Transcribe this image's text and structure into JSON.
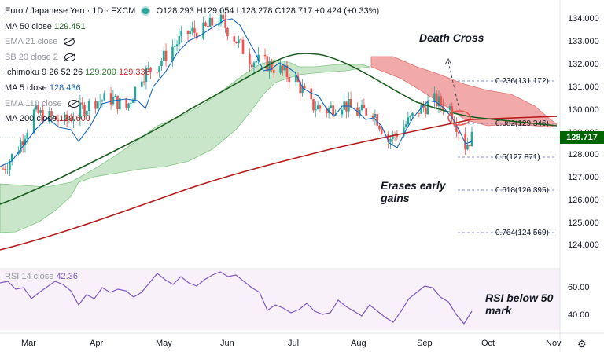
{
  "header": {
    "symbol": "Euro / Japanese Yen · 1D · FXCM",
    "ohlc": "O128.293 H129.054 L128.278 C128.717 +0.424 (+0.33%)"
  },
  "indicators": {
    "ma50": {
      "label": "MA 50 close",
      "value": "129.451"
    },
    "ema21": {
      "label": "EMA 21 close"
    },
    "bb": {
      "label": "BB 20 close 2"
    },
    "ichimoku": {
      "label": "Ichimoku 9 26 52 26",
      "v1": "129.200",
      "v2": "129.336"
    },
    "ma5": {
      "label": "MA 5 close",
      "value": "128.436"
    },
    "ema110": {
      "label": "EMA 110 close"
    },
    "ma200": {
      "label": "MA 200 close",
      "value": "129.600"
    },
    "rsi": {
      "label": "RSI 14 close",
      "value": "42.36"
    }
  },
  "annotations": {
    "death_cross": "Death Cross",
    "erases_1": "Erases early",
    "erases_2": "gains",
    "rsi_1": "RSI below 50",
    "rsi_2": "mark"
  },
  "colors": {
    "up": "#26a69a",
    "down": "#ef5350",
    "ma50": "#1b5e20",
    "ma200": "#b71c1c",
    "ma5": "#1565c0",
    "cloud_bull": "#a5d6a7",
    "cloud_bear": "#ef9a9a",
    "rsi": "#7e57c2"
  },
  "chart_data": {
    "type": "candlestick",
    "title": "Euro / Japanese Yen · 1D · FXCM",
    "current_price": "128.717",
    "y_axis": {
      "range": [
        123.2,
        134.6
      ],
      "ticks": [
        "124.000",
        "125.000",
        "126.000",
        "127.000",
        "128.000",
        "129.000",
        "130.000",
        "131.000",
        "132.000",
        "133.000",
        "134.000"
      ]
    },
    "x_axis": {
      "ticks": [
        "Mar",
        "Apr",
        "May",
        "Jun",
        "Jul",
        "Aug",
        "Sep",
        "Oct",
        "Nov"
      ]
    },
    "close_path": [
      {
        "x": "2021-02-22",
        "y": 127.4
      },
      {
        "x": "2021-03-01",
        "y": 128.3
      },
      {
        "x": "2021-03-08",
        "y": 129.8
      },
      {
        "x": "2021-03-15",
        "y": 129.6
      },
      {
        "x": "2021-03-22",
        "y": 129.4
      },
      {
        "x": "2021-03-29",
        "y": 129.9
      },
      {
        "x": "2021-04-05",
        "y": 130.3
      },
      {
        "x": "2021-04-12",
        "y": 130.4
      },
      {
        "x": "2021-04-19",
        "y": 130.0
      },
      {
        "x": "2021-04-26",
        "y": 131.4
      },
      {
        "x": "2021-05-03",
        "y": 131.8
      },
      {
        "x": "2021-05-10",
        "y": 132.6
      },
      {
        "x": "2021-05-17",
        "y": 133.2
      },
      {
        "x": "2021-05-24",
        "y": 133.3
      },
      {
        "x": "2021-05-31",
        "y": 133.8
      },
      {
        "x": "2021-06-07",
        "y": 133.0
      },
      {
        "x": "2021-06-14",
        "y": 132.1
      },
      {
        "x": "2021-06-21",
        "y": 131.9
      },
      {
        "x": "2021-06-28",
        "y": 131.6
      },
      {
        "x": "2021-07-05",
        "y": 131.2
      },
      {
        "x": "2021-07-12",
        "y": 130.1
      },
      {
        "x": "2021-07-19",
        "y": 129.9
      },
      {
        "x": "2021-07-26",
        "y": 130.2
      },
      {
        "x": "2021-08-02",
        "y": 129.8
      },
      {
        "x": "2021-08-09",
        "y": 129.9
      },
      {
        "x": "2021-08-16",
        "y": 128.6
      },
      {
        "x": "2021-08-23",
        "y": 129.2
      },
      {
        "x": "2021-08-30",
        "y": 129.9
      },
      {
        "x": "2021-09-06",
        "y": 130.3
      },
      {
        "x": "2021-09-13",
        "y": 130.0
      },
      {
        "x": "2021-09-20",
        "y": 128.4
      },
      {
        "x": "2021-09-23",
        "y": 128.717
      }
    ],
    "ma200": [
      {
        "x": "2021-02-22",
        "y": 123.5
      },
      {
        "x": "2021-05-03",
        "y": 126.2
      },
      {
        "x": "2021-07-05",
        "y": 128.1
      },
      {
        "x": "2021-09-23",
        "y": 129.6
      }
    ],
    "ma50": [
      {
        "x": "2021-02-22",
        "y": 125.6
      },
      {
        "x": "2021-04-05",
        "y": 127.8
      },
      {
        "x": "2021-05-17",
        "y": 130.4
      },
      {
        "x": "2021-06-28",
        "y": 131.9
      },
      {
        "x": "2021-07-26",
        "y": 131.2
      },
      {
        "x": "2021-09-06",
        "y": 129.9
      },
      {
        "x": "2021-09-23",
        "y": 129.45
      }
    ],
    "fibonacci": [
      {
        "ratio": "0.236",
        "label": "0.236(131.172)",
        "value": 131.172
      },
      {
        "ratio": "0.382",
        "label": "0.382(129.346)",
        "value": 129.346
      },
      {
        "ratio": "0.5",
        "label": "0.5(127.871)",
        "value": 127.871
      },
      {
        "ratio": "0.618",
        "label": "0.618(126.395)",
        "value": 126.395
      },
      {
        "ratio": "0.764",
        "label": "0.764(124.569)",
        "value": 124.569
      }
    ],
    "rsi": {
      "label": "RSI 14 close",
      "value": 42.36,
      "ticks": [
        "60.00",
        "40.00"
      ],
      "range": [
        28,
        72
      ]
    }
  }
}
